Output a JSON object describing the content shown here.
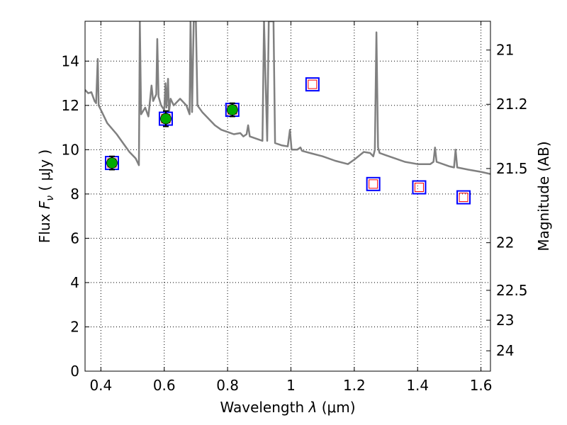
{
  "chart_data": {
    "type": "scatter",
    "xlabel_prefix": "Wavelength",
    "xlabel_symbol": "λ",
    "xlabel_unit": "(μm)",
    "ylabel_prefix": "Flux",
    "ylabel_symbol": "F",
    "ylabel_subscript": "ν",
    "ylabel_unit": "( μJy )",
    "y2label": "Magnitude (AB)",
    "xlim": [
      0.35,
      1.63
    ],
    "ylim": [
      0,
      15.8
    ],
    "grid": true,
    "x_ticks": [
      0.4,
      0.6,
      0.8,
      1.0,
      1.2,
      1.4,
      1.6
    ],
    "x_tick_labels": [
      "0.4",
      "0.6",
      "0.8",
      "1",
      "1.2",
      "1.4",
      "1.6"
    ],
    "y_ticks": [
      0,
      2,
      4,
      6,
      8,
      10,
      12,
      14
    ],
    "y_tick_labels": [
      "0",
      "2",
      "4",
      "6",
      "8",
      "10",
      "12",
      "14"
    ],
    "mag_ticks": [
      {
        "label": "21",
        "flux": 14.5
      },
      {
        "label": "21.2",
        "flux": 12.05
      },
      {
        "label": "21.5",
        "flux": 9.15
      },
      {
        "label": "22",
        "flux": 5.8
      },
      {
        "label": "22.5",
        "flux": 3.65
      },
      {
        "label": "23",
        "flux": 2.3
      },
      {
        "label": "24",
        "flux": 0.92
      }
    ],
    "observed_points": [
      {
        "x": 0.435,
        "y": 9.4,
        "err": 0.3
      },
      {
        "x": 0.605,
        "y": 11.4,
        "err": 0.35
      },
      {
        "x": 0.815,
        "y": 11.8,
        "err": 0.3
      }
    ],
    "model_points": [
      {
        "x": 0.435,
        "y": 9.4
      },
      {
        "x": 0.605,
        "y": 11.4
      },
      {
        "x": 0.815,
        "y": 11.8
      },
      {
        "x": 1.068,
        "y": 12.95
      },
      {
        "x": 1.26,
        "y": 8.45
      },
      {
        "x": 1.405,
        "y": 8.3
      },
      {
        "x": 1.545,
        "y": 7.85
      }
    ],
    "model_only_points": [
      {
        "x": 1.068,
        "y": 12.95
      },
      {
        "x": 1.26,
        "y": 8.45
      },
      {
        "x": 1.405,
        "y": 8.3
      },
      {
        "x": 1.545,
        "y": 7.85
      }
    ],
    "template_spectrum": [
      [
        0.35,
        12.7
      ],
      [
        0.36,
        12.55
      ],
      [
        0.37,
        12.6
      ],
      [
        0.38,
        12.2
      ],
      [
        0.385,
        12.1
      ],
      [
        0.39,
        14.1
      ],
      [
        0.393,
        12.0
      ],
      [
        0.4,
        11.8
      ],
      [
        0.42,
        11.2
      ],
      [
        0.45,
        10.7
      ],
      [
        0.47,
        10.3
      ],
      [
        0.49,
        9.9
      ],
      [
        0.51,
        9.6
      ],
      [
        0.52,
        9.3
      ],
      [
        0.523,
        15.8
      ],
      [
        0.527,
        11.6
      ],
      [
        0.54,
        11.9
      ],
      [
        0.55,
        11.5
      ],
      [
        0.56,
        12.9
      ],
      [
        0.565,
        12.2
      ],
      [
        0.575,
        12.5
      ],
      [
        0.578,
        15.0
      ],
      [
        0.582,
        12.4
      ],
      [
        0.59,
        12.0
      ],
      [
        0.6,
        11.8
      ],
      [
        0.604,
        13.0
      ],
      [
        0.607,
        11.9
      ],
      [
        0.612,
        13.2
      ],
      [
        0.615,
        11.7
      ],
      [
        0.62,
        12.3
      ],
      [
        0.63,
        12.0
      ],
      [
        0.65,
        12.3
      ],
      [
        0.67,
        12.0
      ],
      [
        0.68,
        11.6
      ],
      [
        0.683,
        15.8
      ],
      [
        0.688,
        11.7
      ],
      [
        0.693,
        15.8
      ],
      [
        0.7,
        15.8
      ],
      [
        0.705,
        12.0
      ],
      [
        0.72,
        11.7
      ],
      [
        0.74,
        11.4
      ],
      [
        0.76,
        11.1
      ],
      [
        0.78,
        10.9
      ],
      [
        0.8,
        10.8
      ],
      [
        0.82,
        10.7
      ],
      [
        0.84,
        10.75
      ],
      [
        0.85,
        10.6
      ],
      [
        0.86,
        10.7
      ],
      [
        0.865,
        11.1
      ],
      [
        0.87,
        10.6
      ],
      [
        0.89,
        10.5
      ],
      [
        0.91,
        10.4
      ],
      [
        0.915,
        15.8
      ],
      [
        0.925,
        10.4
      ],
      [
        0.93,
        15.8
      ],
      [
        0.945,
        15.8
      ],
      [
        0.95,
        10.3
      ],
      [
        0.97,
        10.2
      ],
      [
        0.99,
        10.15
      ],
      [
        0.997,
        10.9
      ],
      [
        1.002,
        10.0
      ],
      [
        1.02,
        10.0
      ],
      [
        1.03,
        10.1
      ],
      [
        1.035,
        9.95
      ],
      [
        1.06,
        9.85
      ],
      [
        1.1,
        9.7
      ],
      [
        1.14,
        9.5
      ],
      [
        1.18,
        9.35
      ],
      [
        1.2,
        9.55
      ],
      [
        1.23,
        9.9
      ],
      [
        1.25,
        9.85
      ],
      [
        1.26,
        9.7
      ],
      [
        1.265,
        10.0
      ],
      [
        1.27,
        15.3
      ],
      [
        1.275,
        10.1
      ],
      [
        1.28,
        9.85
      ],
      [
        1.3,
        9.75
      ],
      [
        1.33,
        9.6
      ],
      [
        1.36,
        9.45
      ],
      [
        1.4,
        9.35
      ],
      [
        1.44,
        9.35
      ],
      [
        1.45,
        9.45
      ],
      [
        1.455,
        10.1
      ],
      [
        1.46,
        9.45
      ],
      [
        1.5,
        9.25
      ],
      [
        1.515,
        9.2
      ],
      [
        1.52,
        10.0
      ],
      [
        1.525,
        9.2
      ],
      [
        1.56,
        9.1
      ],
      [
        1.6,
        9.0
      ],
      [
        1.63,
        8.9
      ]
    ],
    "colors": {
      "spectrum": "#808080",
      "observed": "#00aa00",
      "model_outer": "#0000ff",
      "model_inner": "#ff0000",
      "error_bar": "#000000"
    }
  }
}
